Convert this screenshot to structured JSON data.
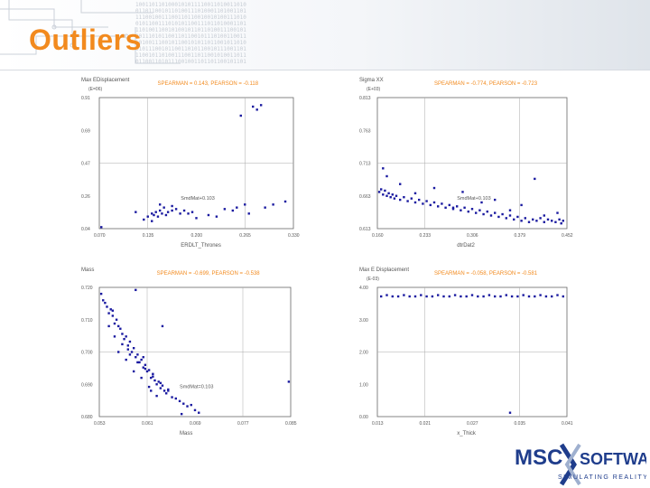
{
  "slide": {
    "title": "Outliers",
    "accent_color": "#f28a1e",
    "binary_text": "1001101101000101011110011010011010\n0110110010110100111010001101001101\n1110010011100110110010010100111010\n0101100111010101100111011010001101\n1101001100101001011011010011100101\n0011101011001101100101110100110011\n1010011100101100101011011001011010\n0101110010110011010110010111001101\n1100101101001110011011001010011011\n0110011010111001001101101100101101"
  },
  "logo": {
    "brand": "MSC SOFTWARE",
    "tagline": "SIMULATING REALITY",
    "color": "#1f3d8c"
  },
  "chart_data": [
    {
      "type": "scatter",
      "ylabel": "Max EDisplacement",
      "y_unit": "(E=06)",
      "xlabel": "ERDLT_Thrones",
      "stats": "SPEARMAN = 0.143, PEARSON = -0.118",
      "trend_label": "SmdMat+0.103",
      "xlim": [
        0.07,
        0.55
      ],
      "ylim": [
        0.04,
        0.91
      ],
      "xticks": [
        "0.070",
        "0.135",
        "0.200",
        "0.265",
        "0.330"
      ],
      "yticks": [
        "0.04",
        "0.26",
        "0.47",
        "0.69",
        "0.91"
      ],
      "x": [
        0.075,
        0.16,
        0.18,
        0.19,
        0.2,
        0.205,
        0.21,
        0.215,
        0.22,
        0.225,
        0.23,
        0.235,
        0.24,
        0.25,
        0.26,
        0.27,
        0.28,
        0.3,
        0.34,
        0.36,
        0.38,
        0.4,
        0.41,
        0.43,
        0.48,
        0.5,
        0.53,
        0.42,
        0.45,
        0.46,
        0.47,
        0.44,
        0.22,
        0.25,
        0.31,
        0.2,
        0.29
      ],
      "y": [
        0.05,
        0.15,
        0.1,
        0.12,
        0.14,
        0.13,
        0.15,
        0.12,
        0.16,
        0.14,
        0.18,
        0.13,
        0.15,
        0.16,
        0.17,
        0.14,
        0.16,
        0.15,
        0.13,
        0.12,
        0.17,
        0.16,
        0.18,
        0.2,
        0.18,
        0.2,
        0.22,
        0.79,
        0.85,
        0.83,
        0.86,
        0.14,
        0.2,
        0.19,
        0.11,
        0.09,
        0.14
      ]
    },
    {
      "type": "scatter",
      "ylabel": "Sigma XX",
      "y_unit": "(E+03)",
      "xlabel": "dtrDat2",
      "stats": "SPEARMAN = -0.774, PEARSON = -0.723",
      "trend_label": "SmdMat+0.103",
      "xlim": [
        0.0,
        1.0
      ],
      "ylim": [
        0.0,
        1.0
      ],
      "xticks": [
        "0.160",
        "0.233",
        "0.306",
        "0.379",
        "0.452"
      ],
      "yticks": [
        "0.613",
        "0.663",
        "0.713",
        "0.763",
        "0.813"
      ],
      "x": [
        0.01,
        0.02,
        0.03,
        0.04,
        0.05,
        0.06,
        0.07,
        0.08,
        0.09,
        0.1,
        0.12,
        0.14,
        0.16,
        0.18,
        0.2,
        0.22,
        0.24,
        0.26,
        0.28,
        0.3,
        0.32,
        0.34,
        0.36,
        0.38,
        0.4,
        0.42,
        0.44,
        0.46,
        0.48,
        0.5,
        0.52,
        0.54,
        0.56,
        0.58,
        0.6,
        0.62,
        0.64,
        0.66,
        0.68,
        0.7,
        0.72,
        0.74,
        0.76,
        0.78,
        0.8,
        0.82,
        0.84,
        0.86,
        0.88,
        0.9,
        0.92,
        0.94,
        0.96,
        0.98,
        0.05,
        0.12,
        0.3,
        0.45,
        0.62,
        0.76,
        0.83,
        0.95,
        0.2,
        0.4,
        0.55,
        0.7,
        0.88,
        0.97,
        0.03
      ],
      "y": [
        0.28,
        0.3,
        0.26,
        0.29,
        0.25,
        0.27,
        0.24,
        0.26,
        0.23,
        0.25,
        0.22,
        0.24,
        0.21,
        0.23,
        0.2,
        0.22,
        0.19,
        0.21,
        0.18,
        0.2,
        0.17,
        0.19,
        0.16,
        0.18,
        0.15,
        0.17,
        0.14,
        0.16,
        0.13,
        0.15,
        0.12,
        0.14,
        0.11,
        0.13,
        0.1,
        0.12,
        0.09,
        0.11,
        0.08,
        0.1,
        0.07,
        0.09,
        0.06,
        0.08,
        0.05,
        0.07,
        0.06,
        0.08,
        0.05,
        0.07,
        0.06,
        0.05,
        0.07,
        0.06,
        0.4,
        0.34,
        0.31,
        0.28,
        0.22,
        0.18,
        0.38,
        0.12,
        0.27,
        0.16,
        0.2,
        0.14,
        0.1,
        0.04,
        0.46
      ]
    },
    {
      "type": "scatter",
      "ylabel": "Mass",
      "y_unit": "",
      "xlabel": "Mass",
      "stats": "SPEARMAN = -0.699, PEARSON = -0.538",
      "trend_label": "SmdMat=0.103",
      "xlim": [
        0.0,
        1.0
      ],
      "ylim": [
        0.0,
        1.0
      ],
      "xticks": [
        "0.053",
        "0.061",
        "0.069",
        "0.077",
        "0.085"
      ],
      "yticks": [
        "0.680",
        "0.690",
        "0.700",
        "0.710",
        "0.720"
      ],
      "x": [
        0.01,
        0.02,
        0.03,
        0.04,
        0.05,
        0.06,
        0.07,
        0.08,
        0.09,
        0.1,
        0.11,
        0.12,
        0.13,
        0.14,
        0.15,
        0.16,
        0.17,
        0.18,
        0.19,
        0.2,
        0.21,
        0.22,
        0.23,
        0.24,
        0.25,
        0.26,
        0.27,
        0.28,
        0.29,
        0.3,
        0.31,
        0.32,
        0.33,
        0.34,
        0.35,
        0.36,
        0.38,
        0.4,
        0.42,
        0.44,
        0.46,
        0.48,
        0.5,
        0.52,
        0.05,
        0.08,
        0.12,
        0.16,
        0.2,
        0.24,
        0.28,
        0.32,
        0.36,
        0.1,
        0.14,
        0.18,
        0.22,
        0.26,
        0.3,
        0.19,
        0.33,
        0.99,
        0.43,
        0.07,
        0.15,
        0.23,
        0.27
      ],
      "y": [
        0.95,
        0.9,
        0.88,
        0.85,
        0.8,
        0.83,
        0.78,
        0.72,
        0.75,
        0.7,
        0.68,
        0.64,
        0.6,
        0.62,
        0.55,
        0.58,
        0.5,
        0.53,
        0.46,
        0.48,
        0.42,
        0.44,
        0.38,
        0.4,
        0.35,
        0.36,
        0.3,
        0.33,
        0.28,
        0.25,
        0.27,
        0.22,
        0.24,
        0.2,
        0.18,
        0.21,
        0.15,
        0.14,
        0.12,
        0.1,
        0.08,
        0.09,
        0.05,
        0.03,
        0.7,
        0.62,
        0.56,
        0.48,
        0.42,
        0.37,
        0.31,
        0.26,
        0.2,
        0.5,
        0.44,
        0.35,
        0.3,
        0.23,
        0.16,
        0.98,
        0.7,
        0.27,
        0.02,
        0.82,
        0.52,
        0.46,
        0.2
      ]
    },
    {
      "type": "scatter",
      "ylabel": "Max E Displacement",
      "y_unit": "(E-03)",
      "xlabel": "x_Thick",
      "stats": "SPEARMAN = -0.058, PEARSON = -0.581",
      "trend_label": "",
      "xlim": [
        0.0,
        1.0
      ],
      "ylim": [
        0.0,
        1.0
      ],
      "xticks": [
        "0.013",
        "0.021",
        "0.027",
        "0.035",
        "0.041"
      ],
      "yticks": [
        "0.00",
        "1.00",
        "2.00",
        "3.00",
        "4.00"
      ],
      "x": [
        0.02,
        0.05,
        0.08,
        0.11,
        0.14,
        0.17,
        0.2,
        0.23,
        0.26,
        0.29,
        0.32,
        0.35,
        0.38,
        0.41,
        0.44,
        0.47,
        0.5,
        0.53,
        0.56,
        0.59,
        0.62,
        0.65,
        0.68,
        0.71,
        0.74,
        0.77,
        0.8,
        0.83,
        0.86,
        0.89,
        0.92,
        0.95,
        0.98,
        0.7
      ],
      "y": [
        0.93,
        0.94,
        0.93,
        0.93,
        0.94,
        0.93,
        0.93,
        0.94,
        0.93,
        0.93,
        0.94,
        0.93,
        0.93,
        0.94,
        0.93,
        0.93,
        0.94,
        0.93,
        0.93,
        0.94,
        0.93,
        0.93,
        0.94,
        0.93,
        0.93,
        0.94,
        0.93,
        0.93,
        0.94,
        0.93,
        0.93,
        0.94,
        0.93,
        0.03
      ]
    }
  ]
}
